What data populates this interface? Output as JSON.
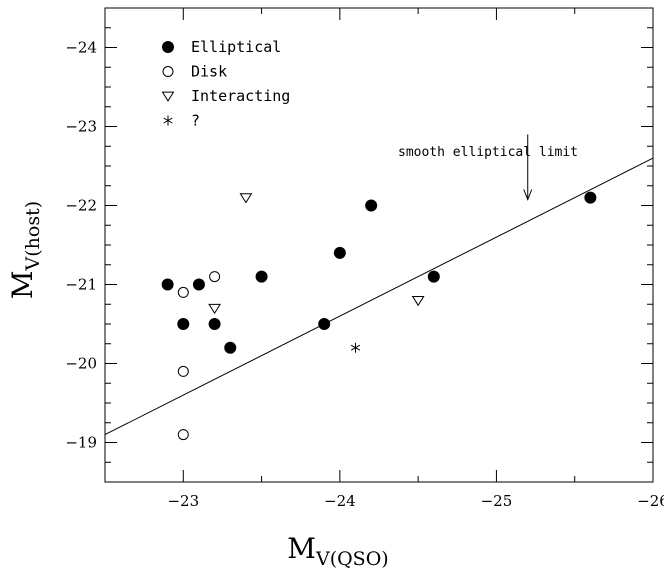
{
  "chart_data": {
    "type": "scatter",
    "xlabel": {
      "main": "M",
      "sub": "V(QSO)"
    },
    "ylabel": {
      "main": "M",
      "sub": "V(host)"
    },
    "xlim": [
      -22.5,
      -26
    ],
    "ylim": [
      -18.5,
      -24.5
    ],
    "x_ticks": [
      -23,
      -24,
      -25,
      -26
    ],
    "y_ticks": [
      -19,
      -20,
      -21,
      -22,
      -23,
      -24
    ],
    "tick_labels_x": [
      "−23",
      "−24",
      "−25",
      "−26"
    ],
    "tick_labels_y": [
      "−19",
      "−20",
      "−21",
      "−22",
      "−23",
      "−24"
    ],
    "legend": [
      {
        "label": "Elliptical",
        "marker": "filled-circle"
      },
      {
        "label": "Disk",
        "marker": "open-circle"
      },
      {
        "label": "Interacting",
        "marker": "open-triangle-down"
      },
      {
        "label": "?",
        "marker": "asterisk"
      }
    ],
    "series": [
      {
        "name": "Elliptical",
        "marker": "filled-circle",
        "points": [
          [
            -22.9,
            -21.0
          ],
          [
            -23.0,
            -20.5
          ],
          [
            -23.1,
            -21.0
          ],
          [
            -23.2,
            -20.5
          ],
          [
            -23.3,
            -20.2
          ],
          [
            -23.5,
            -21.1
          ],
          [
            -23.9,
            -20.5
          ],
          [
            -24.0,
            -21.4
          ],
          [
            -24.2,
            -22.0
          ],
          [
            -24.6,
            -21.1
          ],
          [
            -25.6,
            -22.1
          ]
        ]
      },
      {
        "name": "Disk",
        "marker": "open-circle",
        "points": [
          [
            -23.0,
            -20.9
          ],
          [
            -23.2,
            -21.1
          ],
          [
            -23.0,
            -19.9
          ],
          [
            -23.0,
            -19.1
          ]
        ]
      },
      {
        "name": "Interacting",
        "marker": "open-triangle-down",
        "points": [
          [
            -23.4,
            -22.1
          ],
          [
            -23.2,
            -20.7
          ],
          [
            -24.5,
            -20.8
          ]
        ]
      },
      {
        "name": "?",
        "marker": "asterisk",
        "points": [
          [
            -24.1,
            -20.2
          ]
        ]
      }
    ],
    "line": {
      "x": [
        -22.5,
        -26
      ],
      "y": [
        -19.1,
        -22.6
      ]
    },
    "annotation": {
      "text": "smooth elliptical limit",
      "arrow_x": -25.2,
      "arrow_from_y": -22.9,
      "arrow_to_y": -22.0
    }
  }
}
